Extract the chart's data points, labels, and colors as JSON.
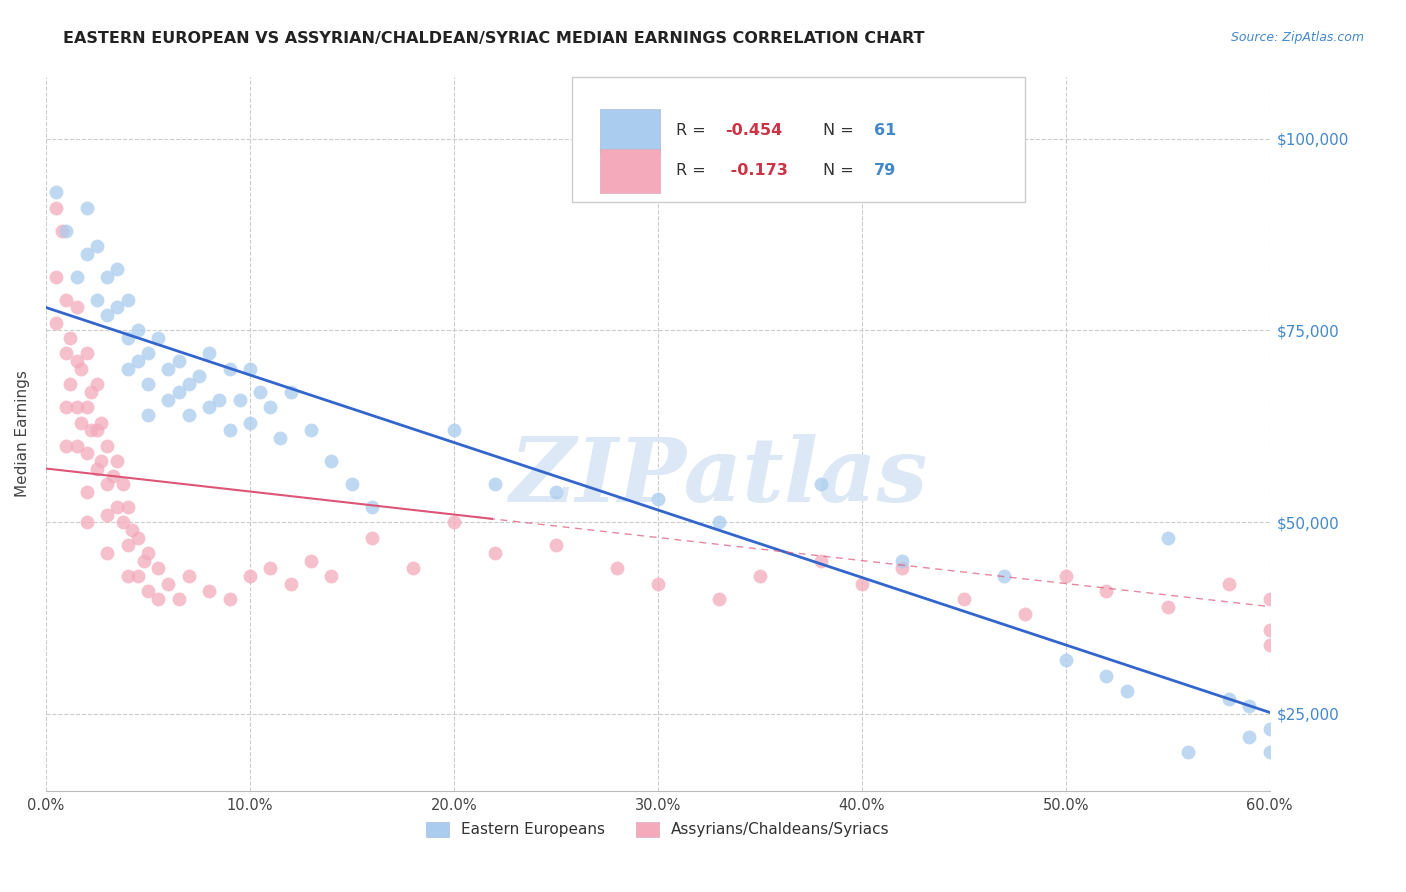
{
  "title": "EASTERN EUROPEAN VS ASSYRIAN/CHALDEAN/SYRIAC MEDIAN EARNINGS CORRELATION CHART",
  "source_text": "Source: ZipAtlas.com",
  "ylabel": "Median Earnings",
  "watermark": "ZIPatlas",
  "legend_label1": "Eastern Europeans",
  "legend_label2": "Assyrians/Chaldeans/Syriacs",
  "blue_color": "#aaccee",
  "pink_color": "#f4aabb",
  "line_blue_color": "#3366cc",
  "line_pink_color": "#dd5577",
  "title_color": "#222222",
  "axis_label_color": "#4488cc",
  "grid_color": "#cccccc",
  "background_color": "#ffffff",
  "watermark_color": "#dce8f5",
  "xmin": 0.0,
  "xmax": 0.6,
  "ymin": 15000,
  "ymax": 108000,
  "yticks": [
    25000,
    50000,
    75000,
    100000
  ],
  "ytick_labels": [
    "$25,000",
    "$50,000",
    "$75,000",
    "$100,000"
  ],
  "xticks": [
    0.0,
    0.1,
    0.2,
    0.3,
    0.4,
    0.5,
    0.6
  ],
  "xtick_labels": [
    "0.0%",
    "10.0%",
    "20.0%",
    "30.0%",
    "40.0%",
    "50.0%",
    "60.0%"
  ],
  "blue_intercept": 78000,
  "blue_slope": -88000,
  "pink_intercept": 57000,
  "pink_slope": -30000,
  "blue_x": [
    0.005,
    0.01,
    0.015,
    0.02,
    0.02,
    0.025,
    0.025,
    0.03,
    0.03,
    0.035,
    0.035,
    0.04,
    0.04,
    0.04,
    0.045,
    0.045,
    0.05,
    0.05,
    0.05,
    0.055,
    0.06,
    0.06,
    0.065,
    0.065,
    0.07,
    0.07,
    0.075,
    0.08,
    0.08,
    0.085,
    0.09,
    0.09,
    0.095,
    0.1,
    0.1,
    0.105,
    0.11,
    0.115,
    0.12,
    0.13,
    0.14,
    0.15,
    0.16,
    0.2,
    0.22,
    0.25,
    0.3,
    0.33,
    0.38,
    0.42,
    0.47,
    0.5,
    0.52,
    0.53,
    0.55,
    0.56,
    0.58,
    0.59,
    0.59,
    0.6,
    0.6
  ],
  "blue_y": [
    93000,
    88000,
    82000,
    91000,
    85000,
    86000,
    79000,
    82000,
    77000,
    83000,
    78000,
    79000,
    74000,
    70000,
    75000,
    71000,
    72000,
    68000,
    64000,
    74000,
    70000,
    66000,
    71000,
    67000,
    68000,
    64000,
    69000,
    65000,
    72000,
    66000,
    70000,
    62000,
    66000,
    63000,
    70000,
    67000,
    65000,
    61000,
    67000,
    62000,
    58000,
    55000,
    52000,
    62000,
    55000,
    54000,
    53000,
    50000,
    55000,
    45000,
    43000,
    32000,
    30000,
    28000,
    48000,
    20000,
    27000,
    22000,
    26000,
    23000,
    20000
  ],
  "pink_x": [
    0.005,
    0.005,
    0.005,
    0.008,
    0.01,
    0.01,
    0.01,
    0.01,
    0.012,
    0.012,
    0.015,
    0.015,
    0.015,
    0.015,
    0.017,
    0.017,
    0.02,
    0.02,
    0.02,
    0.02,
    0.02,
    0.022,
    0.022,
    0.025,
    0.025,
    0.025,
    0.027,
    0.027,
    0.03,
    0.03,
    0.03,
    0.03,
    0.033,
    0.035,
    0.035,
    0.038,
    0.038,
    0.04,
    0.04,
    0.04,
    0.042,
    0.045,
    0.045,
    0.048,
    0.05,
    0.05,
    0.055,
    0.055,
    0.06,
    0.065,
    0.07,
    0.08,
    0.09,
    0.1,
    0.11,
    0.12,
    0.13,
    0.14,
    0.16,
    0.18,
    0.2,
    0.22,
    0.25,
    0.28,
    0.3,
    0.33,
    0.35,
    0.38,
    0.4,
    0.42,
    0.45,
    0.48,
    0.5,
    0.52,
    0.55,
    0.58,
    0.6,
    0.6,
    0.6
  ],
  "pink_y": [
    91000,
    82000,
    76000,
    88000,
    79000,
    72000,
    65000,
    60000,
    74000,
    68000,
    78000,
    71000,
    65000,
    60000,
    70000,
    63000,
    72000,
    65000,
    59000,
    54000,
    50000,
    67000,
    62000,
    68000,
    62000,
    57000,
    63000,
    58000,
    60000,
    55000,
    51000,
    46000,
    56000,
    58000,
    52000,
    55000,
    50000,
    52000,
    47000,
    43000,
    49000,
    48000,
    43000,
    45000,
    46000,
    41000,
    44000,
    40000,
    42000,
    40000,
    43000,
    41000,
    40000,
    43000,
    44000,
    42000,
    45000,
    43000,
    48000,
    44000,
    50000,
    46000,
    47000,
    44000,
    42000,
    40000,
    43000,
    45000,
    42000,
    44000,
    40000,
    38000,
    43000,
    41000,
    39000,
    42000,
    40000,
    36000,
    34000
  ]
}
